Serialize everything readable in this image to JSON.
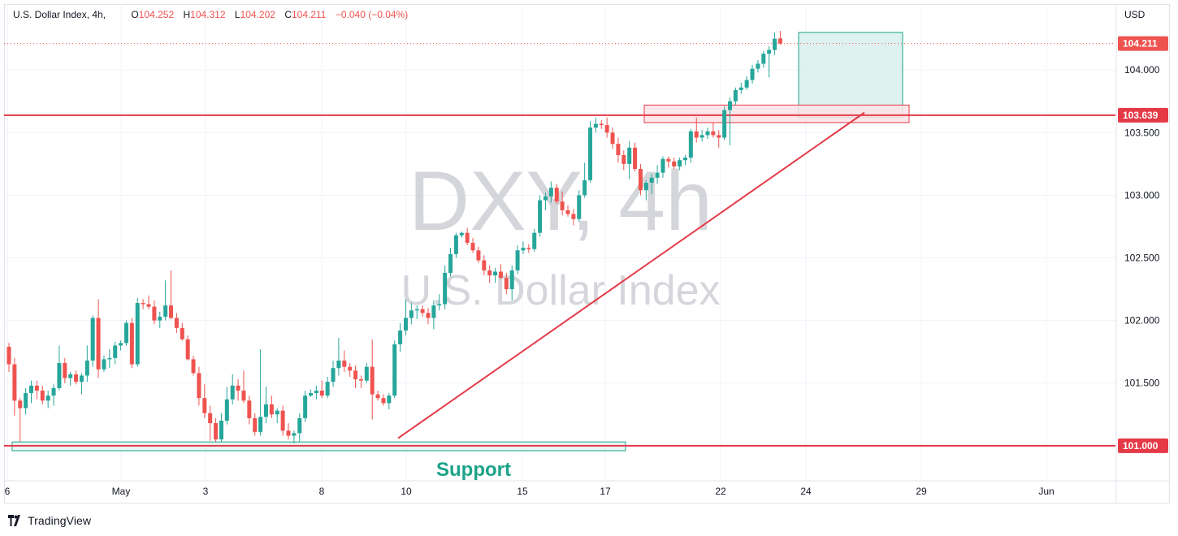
{
  "header": {
    "symbol": "U.S. Dollar Index, 4h,",
    "open_label": "O",
    "open": "104.252",
    "high_label": "H",
    "high": "104.312",
    "low_label": "L",
    "low": "104.202",
    "close_label": "C",
    "close": "104.211",
    "change": "−0.040 (−0.04%)"
  },
  "price_axis": {
    "currency": "USD"
  },
  "watermark": {
    "line1": "DXY, 4h",
    "line2": "U.S. Dollar Index"
  },
  "annotations": {
    "support_label": "Support"
  },
  "footer": {
    "brand": "TradingView"
  },
  "colors": {
    "up": "#26a69a",
    "down": "#ef5350",
    "level_line": "#e53947",
    "support_box": "#1ba388",
    "target_box_fill": "#d3eee9",
    "target_box_border": "#1ba388",
    "resistance_box_fill": "#fde3e6",
    "resistance_box_border": "#e53947",
    "trendline": "#e53947"
  },
  "chart_data": {
    "type": "candlestick",
    "title": "U.S. Dollar Index, 4h",
    "ylim": [
      100.72,
      104.52
    ],
    "y_ticks": [
      "101.500",
      "102.000",
      "102.500",
      "103.000",
      "103.500",
      "104.000"
    ],
    "x_ticks": [
      "6",
      "May",
      "3",
      "8",
      "10",
      "15",
      "17",
      "22",
      "24",
      "29",
      "Jun"
    ],
    "levels": [
      {
        "value": 103.639,
        "label": "103.639",
        "style": "solid"
      },
      {
        "value": 101.0,
        "label": "101.000",
        "style": "solid"
      },
      {
        "value": 104.211,
        "label": "104.211",
        "style": "dotted"
      }
    ],
    "support_zone": {
      "from": 100.96,
      "to": 101.03,
      "label": "Support"
    },
    "resistance_zone": {
      "from": 103.58,
      "to": 103.72
    },
    "target_zone": {
      "from": 103.62,
      "to": 104.3
    },
    "trendline": {
      "from_value": 101.06,
      "to_value": 103.66
    },
    "ohlc": [
      [
        101.79,
        101.82,
        101.59,
        101.65
      ],
      [
        101.65,
        101.7,
        101.24,
        101.36
      ],
      [
        101.36,
        101.38,
        101.03,
        101.3
      ],
      [
        101.3,
        101.46,
        101.25,
        101.42
      ],
      [
        101.42,
        101.52,
        101.34,
        101.48
      ],
      [
        101.48,
        101.52,
        101.37,
        101.44
      ],
      [
        101.44,
        101.48,
        101.33,
        101.36
      ],
      [
        101.36,
        101.44,
        101.3,
        101.4
      ],
      [
        101.4,
        101.49,
        101.32,
        101.46
      ],
      [
        101.46,
        101.8,
        101.44,
        101.66
      ],
      [
        101.66,
        101.7,
        101.5,
        101.54
      ],
      [
        101.54,
        101.59,
        101.48,
        101.57
      ],
      [
        101.57,
        101.6,
        101.49,
        101.51
      ],
      [
        101.51,
        101.58,
        101.41,
        101.56
      ],
      [
        101.56,
        101.8,
        101.51,
        101.68
      ],
      [
        101.68,
        102.04,
        101.63,
        102.02
      ],
      [
        102.02,
        102.17,
        101.54,
        101.61
      ],
      [
        101.61,
        101.72,
        101.59,
        101.69
      ],
      [
        101.69,
        101.77,
        101.62,
        101.7
      ],
      [
        101.7,
        101.83,
        101.65,
        101.8
      ],
      [
        101.8,
        101.84,
        101.76,
        101.82
      ],
      [
        101.82,
        102.0,
        101.8,
        101.98
      ],
      [
        101.98,
        102.02,
        101.62,
        101.65
      ],
      [
        101.65,
        102.18,
        101.63,
        102.14
      ],
      [
        102.14,
        102.17,
        102.09,
        102.13
      ],
      [
        102.13,
        102.2,
        102.09,
        102.11
      ],
      [
        102.11,
        102.16,
        101.97,
        102.0
      ],
      [
        102.0,
        102.07,
        101.94,
        102.03
      ],
      [
        102.03,
        102.32,
        102.0,
        102.12
      ],
      [
        102.12,
        102.4,
        102.01,
        102.02
      ],
      [
        102.02,
        102.06,
        101.9,
        101.94
      ],
      [
        101.94,
        101.98,
        101.84,
        101.85
      ],
      [
        101.85,
        101.88,
        101.68,
        101.69
      ],
      [
        101.69,
        101.72,
        101.56,
        101.58
      ],
      [
        101.58,
        101.63,
        101.32,
        101.38
      ],
      [
        101.38,
        101.49,
        101.22,
        101.26
      ],
      [
        101.26,
        101.32,
        101.04,
        101.18
      ],
      [
        101.18,
        101.22,
        101.03,
        101.05
      ],
      [
        101.05,
        101.26,
        101.03,
        101.2
      ],
      [
        101.2,
        101.47,
        101.17,
        101.37
      ],
      [
        101.37,
        101.57,
        101.33,
        101.48
      ],
      [
        101.48,
        101.53,
        101.36,
        101.44
      ],
      [
        101.44,
        101.6,
        101.34,
        101.36
      ],
      [
        101.36,
        101.4,
        101.17,
        101.22
      ],
      [
        101.22,
        101.26,
        101.08,
        101.11
      ],
      [
        101.11,
        101.77,
        101.08,
        101.23
      ],
      [
        101.23,
        101.47,
        101.18,
        101.33
      ],
      [
        101.33,
        101.4,
        101.22,
        101.25
      ],
      [
        101.25,
        101.3,
        101.18,
        101.28
      ],
      [
        101.28,
        101.32,
        101.08,
        101.12
      ],
      [
        101.12,
        101.18,
        101.05,
        101.08
      ],
      [
        101.08,
        101.12,
        101.02,
        101.1
      ],
      [
        101.1,
        101.26,
        101.03,
        101.22
      ],
      [
        101.22,
        101.44,
        101.19,
        101.4
      ],
      [
        101.4,
        101.45,
        101.39,
        101.42
      ],
      [
        101.42,
        101.48,
        101.37,
        101.44
      ],
      [
        101.44,
        101.52,
        101.38,
        101.4
      ],
      [
        101.4,
        101.55,
        101.38,
        101.51
      ],
      [
        101.51,
        101.68,
        101.47,
        101.62
      ],
      [
        101.62,
        101.86,
        101.56,
        101.68
      ],
      [
        101.68,
        101.76,
        101.59,
        101.63
      ],
      [
        101.63,
        101.66,
        101.55,
        101.6
      ],
      [
        101.6,
        101.64,
        101.46,
        101.53
      ],
      [
        101.53,
        101.56,
        101.46,
        101.52
      ],
      [
        101.52,
        101.66,
        101.5,
        101.63
      ],
      [
        101.63,
        101.85,
        101.21,
        101.41
      ],
      [
        101.41,
        101.44,
        101.36,
        101.38
      ],
      [
        101.38,
        101.41,
        101.32,
        101.34
      ],
      [
        101.34,
        101.42,
        101.29,
        101.4
      ],
      [
        101.4,
        101.84,
        101.38,
        101.81
      ],
      [
        101.81,
        101.98,
        101.75,
        101.92
      ],
      [
        101.92,
        102.17,
        101.88,
        102.02
      ],
      [
        102.02,
        102.14,
        101.97,
        102.08
      ],
      [
        102.08,
        102.12,
        102.01,
        102.09
      ],
      [
        102.09,
        102.12,
        102.03,
        102.06
      ],
      [
        102.06,
        102.1,
        101.97,
        102.02
      ],
      [
        102.02,
        102.16,
        101.93,
        102.12
      ],
      [
        102.12,
        102.21,
        102.08,
        102.13
      ],
      [
        102.13,
        102.44,
        102.09,
        102.38
      ],
      [
        102.38,
        102.58,
        102.35,
        102.53
      ],
      [
        102.53,
        102.7,
        102.5,
        102.68
      ],
      [
        102.68,
        102.71,
        102.66,
        102.7
      ],
      [
        102.7,
        102.74,
        102.6,
        102.62
      ],
      [
        102.62,
        102.66,
        102.54,
        102.56
      ],
      [
        102.56,
        102.59,
        102.46,
        102.48
      ],
      [
        102.48,
        102.52,
        102.36,
        102.4
      ],
      [
        102.4,
        102.44,
        102.3,
        102.36
      ],
      [
        102.36,
        102.42,
        102.3,
        102.39
      ],
      [
        102.39,
        102.45,
        102.33,
        102.34
      ],
      [
        102.34,
        102.38,
        102.21,
        102.25
      ],
      [
        102.25,
        102.44,
        102.16,
        102.4
      ],
      [
        102.4,
        102.6,
        102.37,
        102.56
      ],
      [
        102.56,
        102.63,
        102.53,
        102.58
      ],
      [
        102.58,
        102.61,
        102.54,
        102.57
      ],
      [
        102.57,
        102.73,
        102.55,
        102.7
      ],
      [
        102.7,
        103.0,
        102.67,
        102.96
      ],
      [
        102.96,
        103.02,
        102.88,
        102.99
      ],
      [
        102.99,
        103.11,
        102.94,
        103.06
      ],
      [
        103.06,
        103.09,
        102.93,
        102.95
      ],
      [
        102.95,
        103.03,
        102.84,
        102.88
      ],
      [
        102.88,
        102.92,
        102.83,
        102.85
      ],
      [
        102.85,
        102.89,
        102.76,
        102.81
      ],
      [
        102.81,
        103.04,
        102.79,
        103.0
      ],
      [
        103.0,
        103.26,
        102.98,
        103.12
      ],
      [
        103.12,
        103.59,
        103.1,
        103.54
      ],
      [
        103.54,
        103.62,
        103.5,
        103.57
      ],
      [
        103.57,
        103.6,
        103.53,
        103.56
      ],
      [
        103.56,
        103.62,
        103.46,
        103.5
      ],
      [
        103.5,
        103.54,
        103.37,
        103.41
      ],
      [
        103.41,
        103.46,
        103.26,
        103.32
      ],
      [
        103.32,
        103.36,
        103.2,
        103.25
      ],
      [
        103.25,
        103.43,
        103.13,
        103.38
      ],
      [
        103.38,
        103.42,
        103.19,
        103.21
      ],
      [
        103.21,
        103.25,
        103.0,
        103.04
      ],
      [
        103.04,
        103.12,
        102.96,
        103.1
      ],
      [
        103.1,
        103.17,
        103.01,
        103.14
      ],
      [
        103.14,
        103.24,
        103.09,
        103.18
      ],
      [
        103.18,
        103.31,
        103.14,
        103.29
      ],
      [
        103.29,
        103.31,
        103.22,
        103.27
      ],
      [
        103.27,
        103.3,
        103.21,
        103.23
      ],
      [
        103.23,
        103.3,
        103.2,
        103.28
      ],
      [
        103.28,
        103.32,
        103.24,
        103.3
      ],
      [
        103.3,
        103.53,
        103.26,
        103.51
      ],
      [
        103.51,
        103.62,
        103.42,
        103.46
      ],
      [
        103.46,
        103.52,
        103.43,
        103.48
      ],
      [
        103.48,
        103.54,
        103.45,
        103.51
      ],
      [
        103.51,
        103.58,
        103.46,
        103.48
      ],
      [
        103.48,
        103.52,
        103.38,
        103.46
      ],
      [
        103.46,
        103.71,
        103.44,
        103.68
      ],
      [
        103.68,
        103.78,
        103.4,
        103.75
      ],
      [
        103.75,
        103.86,
        103.72,
        103.84
      ],
      [
        103.84,
        103.9,
        103.81,
        103.86
      ],
      [
        103.86,
        103.95,
        103.84,
        103.92
      ],
      [
        103.92,
        104.04,
        103.89,
        104.01
      ],
      [
        104.01,
        104.08,
        103.98,
        104.05
      ],
      [
        104.05,
        104.15,
        104.02,
        104.13
      ],
      [
        104.13,
        104.19,
        103.94,
        104.16
      ],
      [
        104.16,
        104.3,
        104.12,
        104.25
      ],
      [
        104.252,
        104.312,
        104.202,
        104.211
      ]
    ]
  }
}
